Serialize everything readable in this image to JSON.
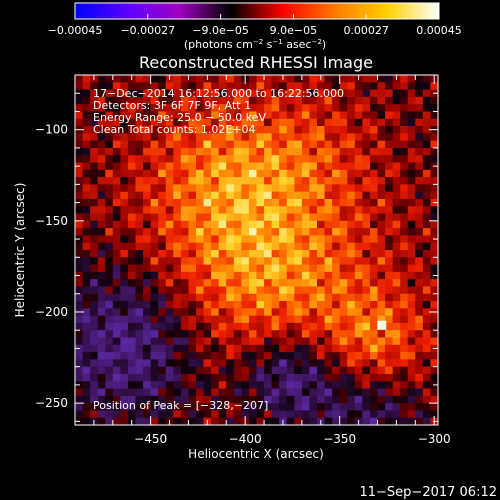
{
  "chart_data": {
    "type": "heatmap",
    "title": "Reconstructed RHESSI Image",
    "xlabel": "Heliocentric X (arcsec)",
    "ylabel": "Heliocentric Y (arcsec)",
    "xlim": [
      -490,
      -298
    ],
    "ylim": [
      -262,
      -70
    ],
    "x_ticks": [
      -450,
      -400,
      -350,
      -300
    ],
    "x_tick_labels": [
      "−450",
      "−400",
      "−350",
      "−300"
    ],
    "y_ticks": [
      -100,
      -150,
      -200,
      -250
    ],
    "y_tick_labels": [
      "−100",
      "−150",
      "−200",
      "−250"
    ],
    "colorbar": {
      "range": [
        -0.00045,
        0.00045
      ],
      "ticks": [
        -0.00045,
        -0.00027,
        -9e-05,
        9e-05,
        0.00027,
        0.00045
      ],
      "tick_labels": [
        "−0.00045",
        "−0.00027",
        "−9.0e−05",
        "9.0e−05",
        "0.00027",
        "0.00045"
      ],
      "units_parts": [
        "(photons cm",
        "−2",
        " s",
        "−1",
        " asec",
        "−2",
        ")"
      ],
      "colors": [
        "#0000ff",
        "#5a00ff",
        "#a000c0",
        "#000000",
        "#ff0000",
        "#ff7a00",
        "#ffd000",
        "#ffffff"
      ]
    },
    "annotations": [
      "17−Dec−2014 16:12:56.000 to 16:22:56.000",
      "Detectors: 3F 6F 7F 9F, Att 1",
      "Energy Range: 25.0 − 50.0 keV",
      "Clean     Total counts: 1.02E+04"
    ],
    "peak_label": "Position of Peak = [−328,−207]",
    "peak": [
      -328,
      -207
    ]
  },
  "footer": {
    "timestamp": "11−Sep−2017 06:12"
  }
}
